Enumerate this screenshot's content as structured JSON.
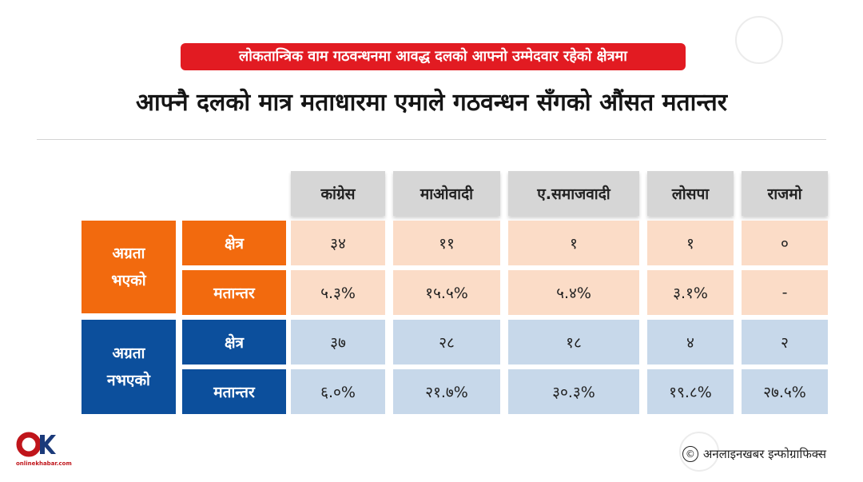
{
  "subtitle": "लोकतान्त्रिक वाम गठवन्धनमा आवद्ध दलको आफ्नो उम्मेदवार रहेको क्षेत्रमा",
  "title": "आफ्नै दलको मात्र मताधारमा एमाले गठवन्धन सँगको औंसत मतान्तर",
  "table": {
    "columns": [
      "कांग्रेस",
      "माओवादी",
      "ए.समाजवादी",
      "लोसपा",
      "राजमो"
    ],
    "groups": [
      {
        "label_line1": "अग्रता",
        "label_line2": "भएको",
        "color": "#f26a0e",
        "rows": [
          {
            "label": "क्षेत्र",
            "values": [
              "३४",
              "११",
              "१",
              "१",
              "०"
            ]
          },
          {
            "label": "मतान्तर",
            "values": [
              "५.३%",
              "१५.५%",
              "५.४%",
              "३.१%",
              "-"
            ]
          }
        ]
      },
      {
        "label_line1": "अग्रता",
        "label_line2": "नभएको",
        "color": "#0c4f9c",
        "rows": [
          {
            "label": "क्षेत्र",
            "values": [
              "३७",
              "२८",
              "१८",
              "४",
              "२"
            ]
          },
          {
            "label": "मतान्तर",
            "values": [
              "६.०%",
              "२१.७%",
              "३०.३%",
              "१९.८%",
              "२७.५%"
            ]
          }
        ]
      }
    ]
  },
  "logo": {
    "text": "onlinekhabar.com",
    "icon": "ok-logo-icon"
  },
  "credit": {
    "icon": "copyright-icon",
    "symbol": "©",
    "text": "अनलाइनखबर इन्फोग्राफिक्स"
  },
  "colors": {
    "accent_red": "#e21b22",
    "orange": "#f26a0e",
    "blue": "#0c4f9c"
  }
}
